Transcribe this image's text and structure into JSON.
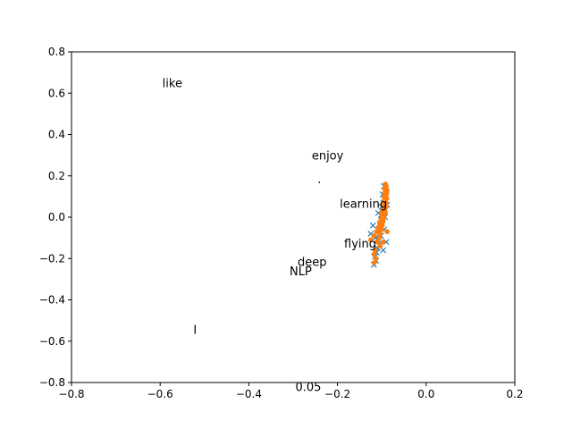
{
  "chart_data": {
    "type": "scatter",
    "title": "",
    "xlabel": "",
    "ylabel": "",
    "xlim": [
      -0.8,
      0.2
    ],
    "ylim": [
      -0.8,
      0.8
    ],
    "xticks": [
      -0.8,
      -0.6,
      -0.4,
      -0.2,
      0.0,
      0.2
    ],
    "yticks": [
      -0.8,
      -0.6,
      -0.4,
      -0.2,
      0.0,
      0.2,
      0.4,
      0.6,
      0.8
    ],
    "xtick_labels": [
      "−0.8",
      "−0.6",
      "−0.4",
      "−0.2",
      "0.0",
      "0.2"
    ],
    "ytick_labels": [
      "−0.8",
      "−0.6",
      "−0.4",
      "−0.2",
      "0.0",
      "0.2",
      "0.4",
      "0.6",
      "0.8"
    ],
    "grid": false,
    "colors": {
      "series1": "#1f77b4",
      "series2": "#ff7f0e"
    },
    "word_labels": [
      {
        "text": "like",
        "x": -0.595,
        "y": 0.63
      },
      {
        "text": "enjoy",
        "x": -0.258,
        "y": 0.28
      },
      {
        "text": ".",
        "x": -0.245,
        "y": 0.165
      },
      {
        "text": "learning",
        "x": -0.195,
        "y": 0.045
      },
      {
        "text": "flying",
        "x": -0.185,
        "y": -0.148
      },
      {
        "text": "deep",
        "x": -0.29,
        "y": -0.235
      },
      {
        "text": "NLP",
        "x": -0.308,
        "y": -0.28
      },
      {
        "text": "I",
        "x": -0.525,
        "y": -0.565
      },
      {
        "text": "0.05",
        "x": -0.295,
        "y": -0.84
      }
    ],
    "series": [
      {
        "marker": "x",
        "color": "#1f77b4",
        "points": [
          [
            -0.095,
            0.15
          ],
          [
            -0.092,
            0.13
          ],
          [
            -0.098,
            0.11
          ],
          [
            -0.093,
            0.09
          ],
          [
            -0.096,
            0.07
          ],
          [
            -0.1,
            0.05
          ],
          [
            -0.095,
            0.03
          ],
          [
            -0.102,
            0.01
          ],
          [
            -0.098,
            -0.01
          ],
          [
            -0.104,
            -0.03
          ],
          [
            -0.1,
            -0.05
          ],
          [
            -0.106,
            -0.07
          ],
          [
            -0.102,
            -0.09
          ],
          [
            -0.108,
            -0.11
          ],
          [
            -0.104,
            -0.13
          ],
          [
            -0.11,
            -0.15
          ],
          [
            -0.112,
            -0.17
          ],
          [
            -0.115,
            -0.19
          ],
          [
            -0.113,
            -0.21
          ],
          [
            -0.118,
            -0.23
          ],
          [
            -0.09,
            -0.12
          ],
          [
            -0.095,
            -0.06
          ],
          [
            -0.12,
            -0.04
          ],
          [
            -0.125,
            -0.08
          ],
          [
            -0.093,
            0.0
          ],
          [
            -0.088,
            0.06
          ],
          [
            -0.09,
            0.1
          ],
          [
            -0.097,
            -0.16
          ],
          [
            -0.115,
            -0.1
          ],
          [
            -0.108,
            0.02
          ]
        ]
      },
      {
        "marker": "o",
        "color": "#ff7f0e",
        "points": [
          [
            -0.092,
            0.16
          ],
          [
            -0.09,
            0.15
          ],
          [
            -0.094,
            0.14
          ],
          [
            -0.088,
            0.13
          ],
          [
            -0.093,
            0.12
          ],
          [
            -0.09,
            0.11
          ],
          [
            -0.095,
            0.1
          ],
          [
            -0.089,
            0.09
          ],
          [
            -0.093,
            0.08
          ],
          [
            -0.091,
            0.07
          ],
          [
            -0.096,
            0.06
          ],
          [
            -0.09,
            0.05
          ],
          [
            -0.094,
            0.04
          ],
          [
            -0.098,
            0.03
          ],
          [
            -0.092,
            0.02
          ],
          [
            -0.1,
            0.01
          ],
          [
            -0.095,
            0.0
          ],
          [
            -0.102,
            -0.01
          ],
          [
            -0.097,
            -0.02
          ],
          [
            -0.105,
            -0.03
          ],
          [
            -0.099,
            -0.04
          ],
          [
            -0.108,
            -0.05
          ],
          [
            -0.1,
            -0.06
          ],
          [
            -0.112,
            -0.07
          ],
          [
            -0.104,
            -0.08
          ],
          [
            -0.118,
            -0.09
          ],
          [
            -0.106,
            -0.1
          ],
          [
            -0.11,
            -0.12
          ],
          [
            -0.104,
            -0.14
          ],
          [
            -0.115,
            -0.16
          ],
          [
            -0.118,
            -0.18
          ],
          [
            -0.113,
            -0.2
          ],
          [
            -0.117,
            -0.22
          ],
          [
            -0.088,
            -0.07
          ],
          [
            -0.093,
            0.03
          ],
          [
            -0.091,
            0.05
          ],
          [
            -0.097,
            -0.12
          ],
          [
            -0.125,
            -0.11
          ],
          [
            -0.089,
            0.12
          ],
          [
            -0.094,
            0.09
          ],
          [
            -0.098,
            -0.01
          ],
          [
            -0.101,
            0.02
          ]
        ]
      }
    ]
  }
}
